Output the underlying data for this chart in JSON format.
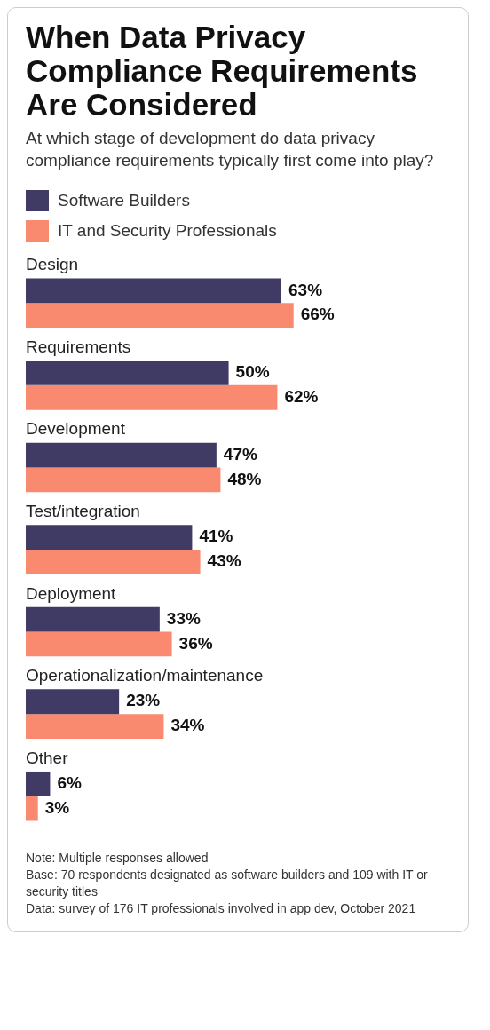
{
  "chart_data": {
    "type": "bar",
    "orientation": "horizontal",
    "title": "When Data Privacy Compliance Requirements Are Considered",
    "subtitle": "At which stage of development do data privacy compliance requirements typically first come into play?",
    "categories": [
      "Design",
      "Requirements",
      "Development",
      "Test/integration",
      "Deployment",
      "Operationalization/maintenance",
      "Other"
    ],
    "series": [
      {
        "name": "Software Builders",
        "color": "#3f3b64",
        "values": [
          63,
          50,
          47,
          41,
          33,
          23,
          6
        ],
        "value_labels": [
          "63%",
          "50%",
          "47%",
          "41%",
          "33%",
          "23%",
          "6%"
        ]
      },
      {
        "name": "IT and Security Professionals",
        "color": "#f98a70",
        "values": [
          66,
          62,
          48,
          43,
          36,
          34,
          3
        ],
        "value_labels": [
          "66%",
          "62%",
          "48%",
          "43%",
          "36%",
          "34%",
          "3%"
        ]
      }
    ],
    "tick_labels": false,
    "legend": "top left",
    "annotations": [
      "Note: Multiple responses allowed",
      "Base: 70 respondents designated as software builders and 109 with IT or security titles",
      "Data: survey of 176 IT professionals involved in app dev, October 2021"
    ]
  }
}
